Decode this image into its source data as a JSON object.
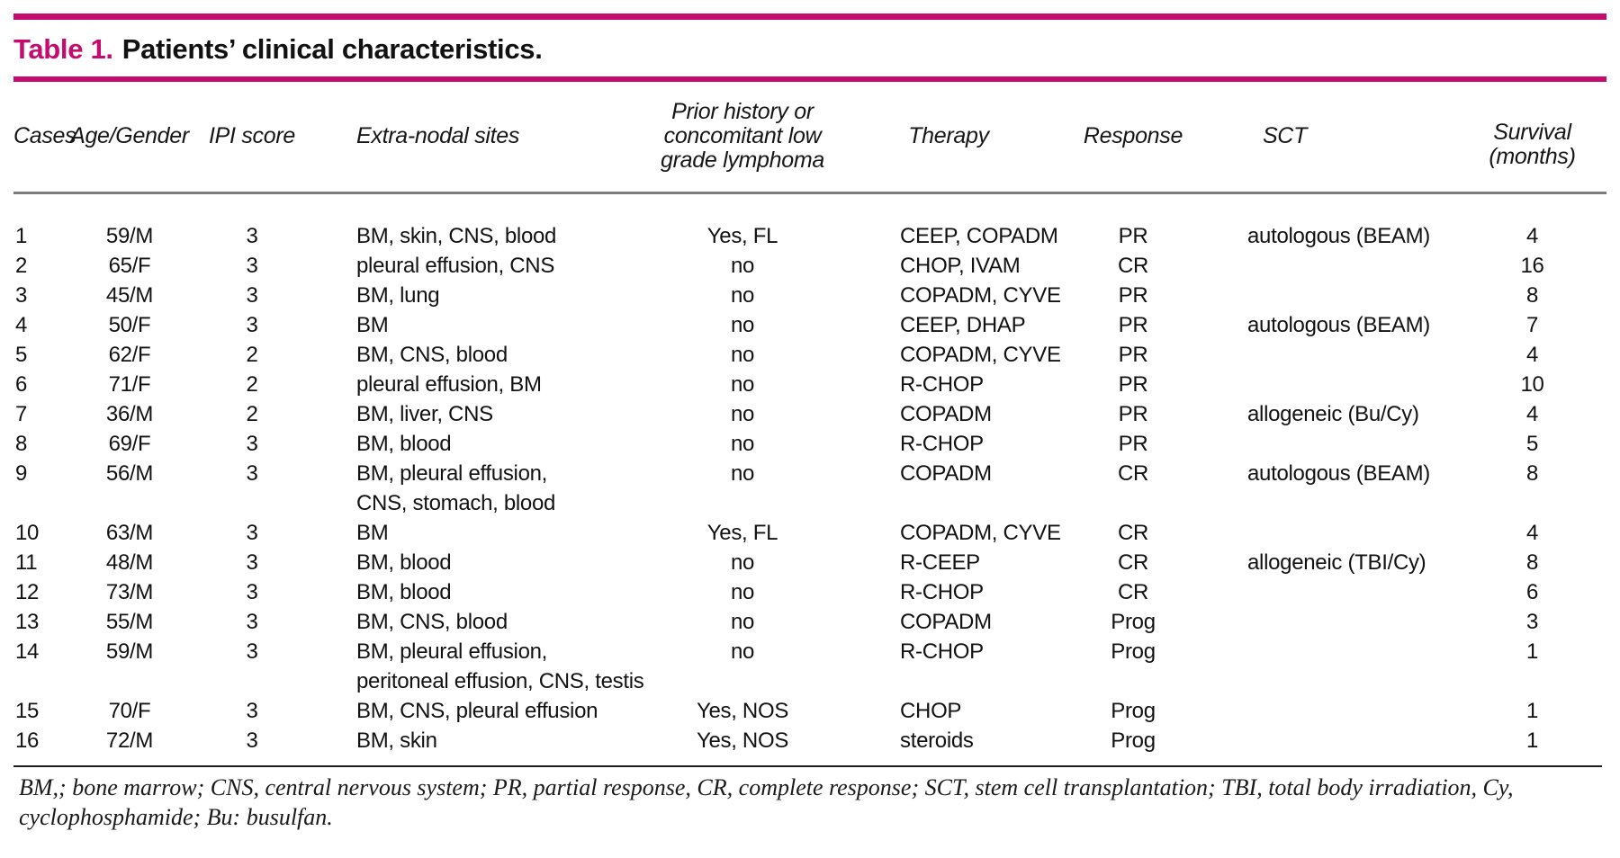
{
  "page": {
    "accent_color": "#c50c6e",
    "title": {
      "label": "Table 1.",
      "text": "Patients’ clinical characteristics."
    }
  },
  "table": {
    "columns": [
      "Cases",
      "Age/Gender",
      "IPI score",
      "Extra-nodal sites",
      "Prior history or\nconcomitant low\ngrade lymphoma",
      "Therapy",
      "Response",
      "SCT",
      "Survival\n(months)"
    ],
    "row_keys": [
      "num",
      "age",
      "ipi",
      "sites",
      "prior",
      "therapy",
      "response",
      "sct",
      "survival"
    ],
    "rows": [
      {
        "num": 1,
        "age": "59/M",
        "ipi": 3,
        "sites": "BM, skin, CNS, blood",
        "prior": "Yes, FL",
        "therapy": "CEEP, COPADM",
        "response": "PR",
        "sct": "autologous (BEAM)",
        "survival": 4
      },
      {
        "num": 2,
        "age": "65/F",
        "ipi": 3,
        "sites": "pleural effusion, CNS",
        "prior": "no",
        "therapy": "CHOP, IVAM",
        "response": "CR",
        "sct": "",
        "survival": 16
      },
      {
        "num": 3,
        "age": "45/M",
        "ipi": 3,
        "sites": "BM, lung",
        "prior": "no",
        "therapy": "COPADM, CYVE",
        "response": "PR",
        "sct": "",
        "survival": 8
      },
      {
        "num": 4,
        "age": "50/F",
        "ipi": 3,
        "sites": "BM",
        "prior": "no",
        "therapy": "CEEP, DHAP",
        "response": "PR",
        "sct": "autologous (BEAM)",
        "survival": 7
      },
      {
        "num": 5,
        "age": "62/F",
        "ipi": 2,
        "sites": "BM, CNS, blood",
        "prior": "no",
        "therapy": "COPADM, CYVE",
        "response": "PR",
        "sct": "",
        "survival": 4
      },
      {
        "num": 6,
        "age": "71/F",
        "ipi": 2,
        "sites": "pleural effusion, BM",
        "prior": "no",
        "therapy": "R-CHOP",
        "response": "PR",
        "sct": "",
        "survival": 10
      },
      {
        "num": 7,
        "age": "36/M",
        "ipi": 2,
        "sites": "BM, liver, CNS",
        "prior": "no",
        "therapy": "COPADM",
        "response": "PR",
        "sct": "allogeneic (Bu/Cy)",
        "survival": 4
      },
      {
        "num": 8,
        "age": "69/F",
        "ipi": 3,
        "sites": "BM, blood",
        "prior": "no",
        "therapy": "R-CHOP",
        "response": "PR",
        "sct": "",
        "survival": 5
      },
      {
        "num": 9,
        "age": "56/M",
        "ipi": 3,
        "sites": "BM, pleural effusion,\nCNS, stomach, blood",
        "prior": "no",
        "therapy": "COPADM",
        "response": "CR",
        "sct": "autologous  (BEAM)",
        "survival": 8
      },
      {
        "num": 10,
        "age": "63/M",
        "ipi": 3,
        "sites": "BM",
        "prior": "Yes, FL",
        "therapy": "COPADM, CYVE",
        "response": "CR",
        "sct": "",
        "survival": 4
      },
      {
        "num": 11,
        "age": "48/M",
        "ipi": 3,
        "sites": "BM, blood",
        "prior": "no",
        "therapy": "R-CEEP",
        "response": "CR",
        "sct": "allogeneic (TBI/Cy)",
        "survival": 8
      },
      {
        "num": 12,
        "age": "73/M",
        "ipi": 3,
        "sites": "BM, blood",
        "prior": "no",
        "therapy": "R-CHOP",
        "response": "CR",
        "sct": "",
        "survival": 6
      },
      {
        "num": 13,
        "age": "55/M",
        "ipi": 3,
        "sites": "BM, CNS, blood",
        "prior": "no",
        "therapy": "COPADM",
        "response": "Prog",
        "sct": "",
        "survival": 3
      },
      {
        "num": 14,
        "age": "59/M",
        "ipi": 3,
        "sites": "BM, pleural effusion,\nperitoneal effusion, CNS, testis",
        "prior": "no",
        "therapy": "R-CHOP",
        "response": "Prog",
        "sct": "",
        "survival": 1
      },
      {
        "num": 15,
        "age": "70/F",
        "ipi": 3,
        "sites": "BM, CNS, pleural effusion",
        "prior": "Yes, NOS",
        "therapy": "CHOP",
        "response": "Prog",
        "sct": "",
        "survival": 1
      },
      {
        "num": 16,
        "age": "72/M",
        "ipi": 3,
        "sites": "BM, skin",
        "prior": "Yes, NOS",
        "therapy": "steroids",
        "response": "Prog",
        "sct": "",
        "survival": 1
      }
    ]
  },
  "footnote": {
    "text": "BM,; bone marrow; CNS, central nervous system; PR, partial response, CR, complete response; SCT, stem cell transplantation; TBI, total body irradiation, Cy,\ncyclophosphamide; Bu: busulfan."
  }
}
